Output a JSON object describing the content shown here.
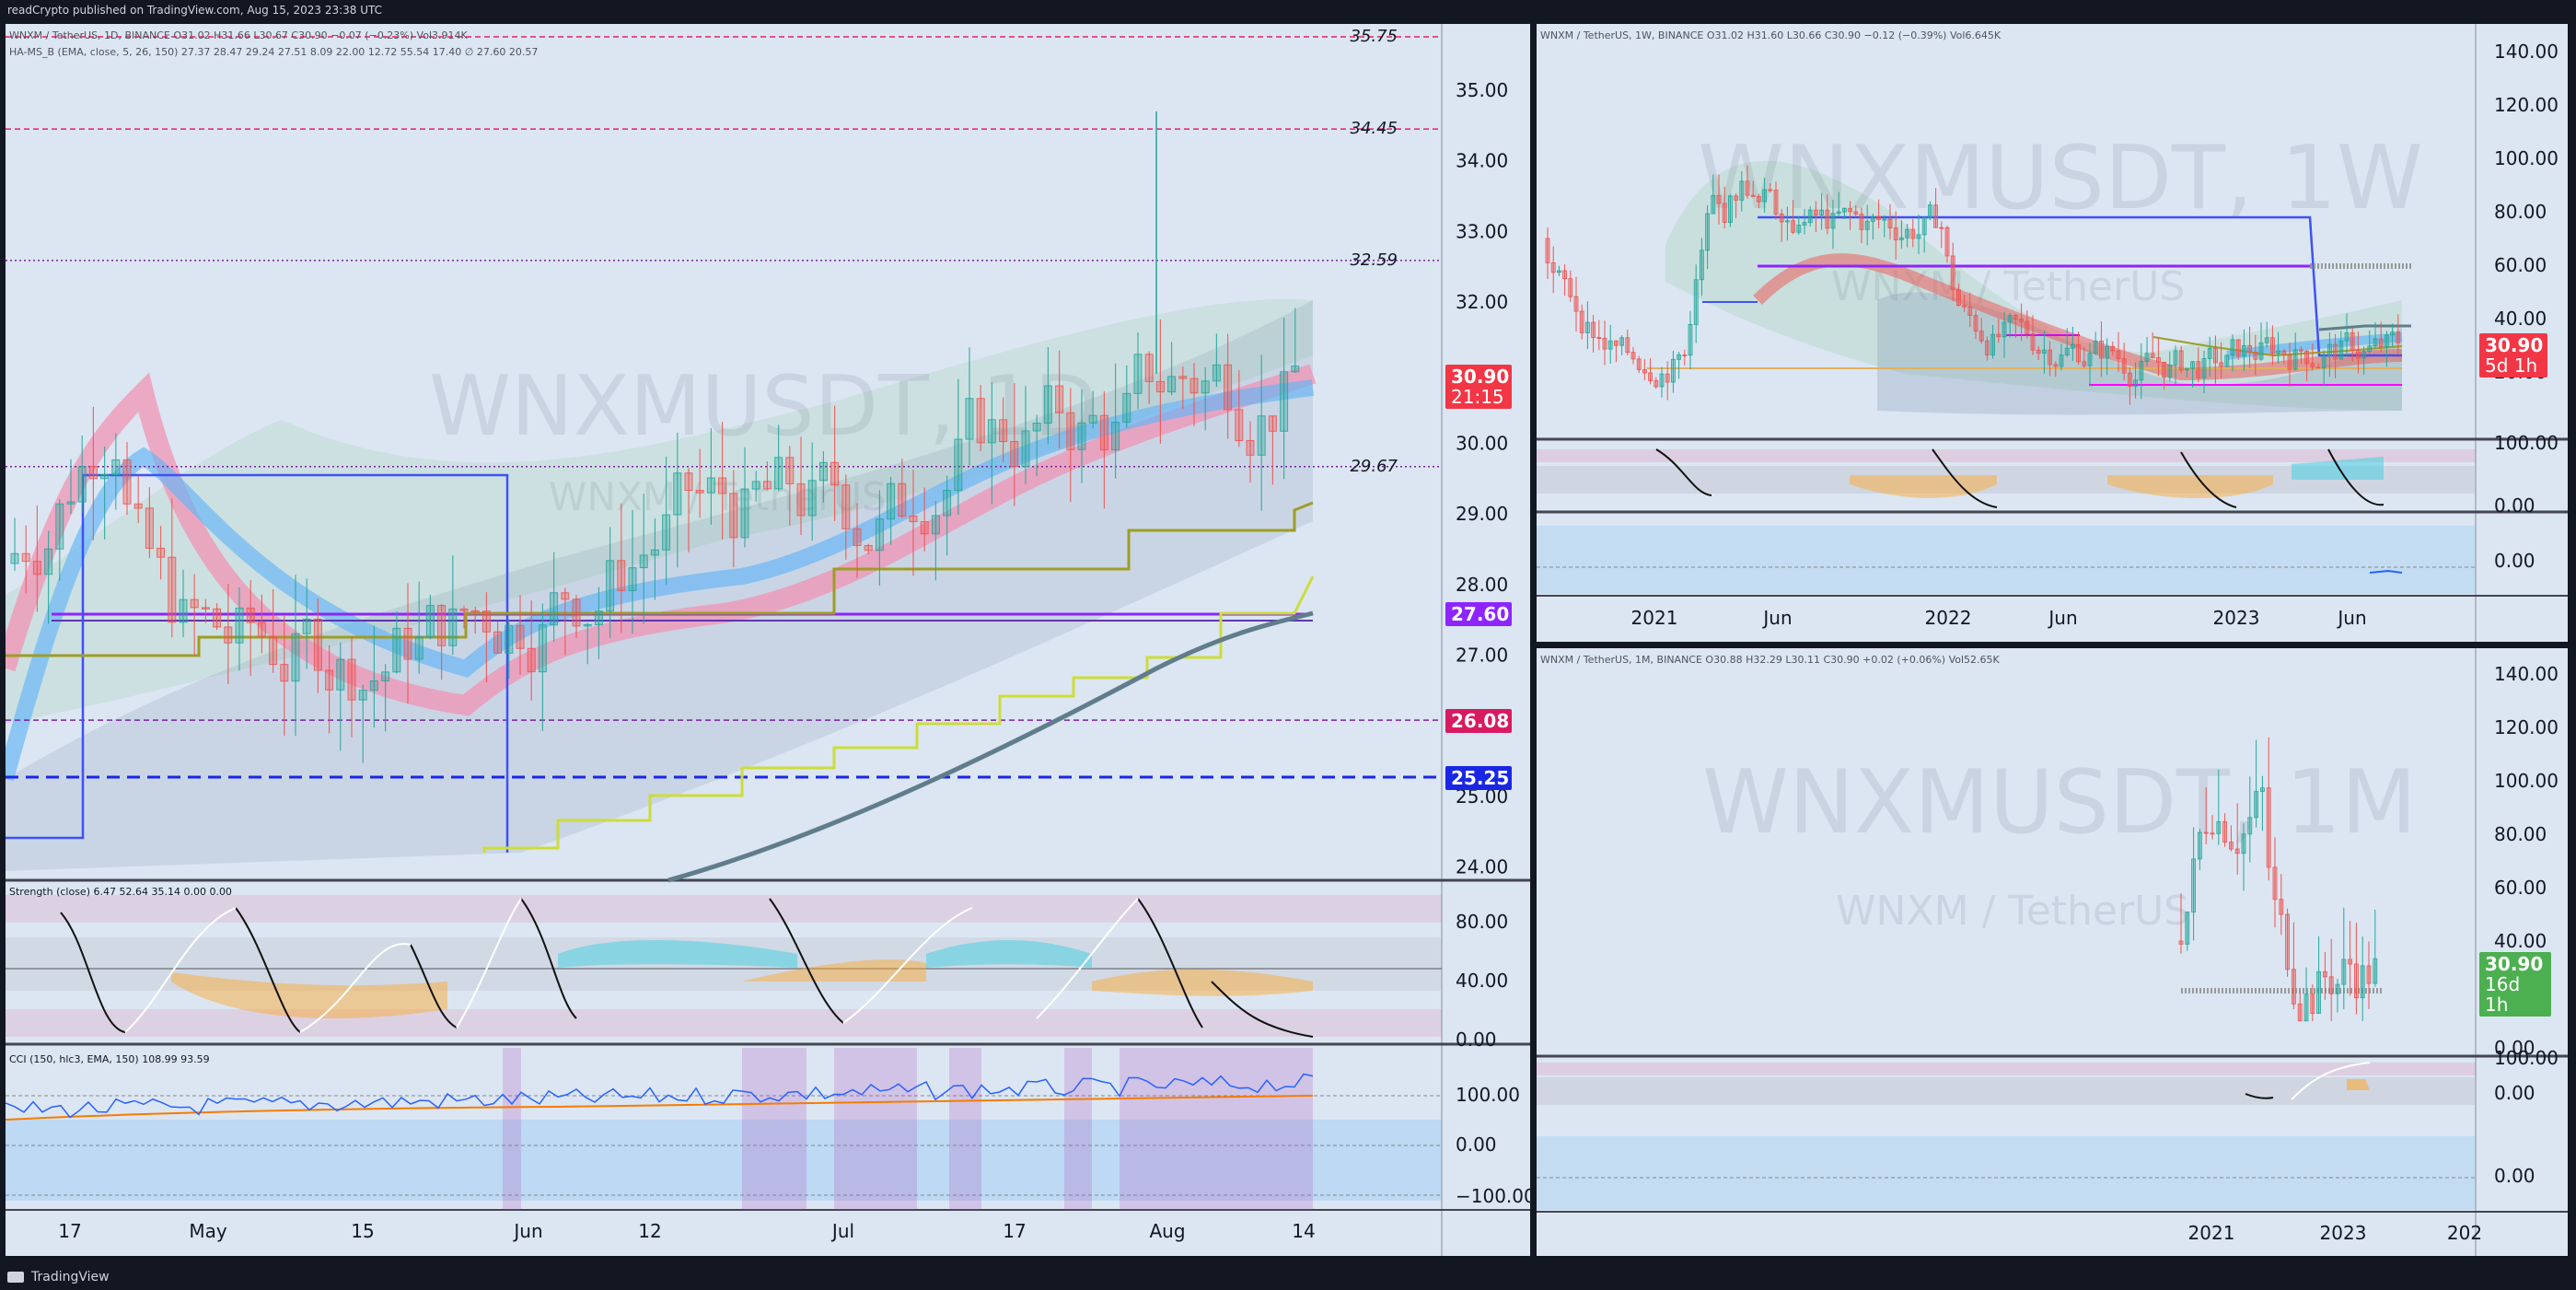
{
  "header": {
    "text": "readCrypto published on TradingView.com, Aug 15, 2023 23:38 UTC"
  },
  "footer": {
    "brand": "TradingView"
  },
  "left": {
    "legend_main": "WNXM / TetherUS, 1D, BINANCE  O31.02 H31.66 L30.67 C30.90 −0.07 (−0.23%)  Vol3.914K",
    "legend_ha": "HA-MS_B (EMA, close, 5, 26, 150)  27.37  28.47  29.24  27.51  8.09  22.00  12.72  55.54  17.40  ∅  27.60  20.57",
    "watermark_big": "WNXMUSDT, 1D",
    "watermark_small": "WNXM / TetherUS",
    "price_ticks": [
      "35.00",
      "34.00",
      "33.00",
      "32.00",
      "31.00",
      "30.00",
      "29.00",
      "28.00",
      "27.00",
      "26.00",
      "25.00",
      "24.00"
    ],
    "levels": [
      {
        "value": "35.75",
        "color": "#e91e63"
      },
      {
        "value": "34.45",
        "color": "#e91e63"
      },
      {
        "value": "32.59",
        "color": "#7b1fa2"
      },
      {
        "value": "29.67",
        "color": "#7b1fa2"
      },
      {
        "value": "26.08",
        "color": "#7b1fa2"
      }
    ],
    "tag_price": {
      "value": "30.90",
      "sub": "21:15",
      "color": "#f23645"
    },
    "tag_2760": {
      "value": "27.60",
      "color": "#8e24ff"
    },
    "tag_2608": {
      "value": "26.08",
      "color": "#d81b60"
    },
    "tag_2525": {
      "value": "25.25",
      "color": "#1a26e6"
    },
    "strength_legend": "Strength (close)  6.47  52.64  35.14  0.00  0.00",
    "strength_ticks": [
      "80.00",
      "40.00",
      "0.00"
    ],
    "cci_legend": "CCI (150, hlc3, EMA, 150)  108.99  93.59",
    "cci_ticks": [
      "100.00",
      "0.00",
      "−100.00"
    ],
    "time_ticks": [
      "17",
      "May",
      "15",
      "Jun",
      "12",
      "Jul",
      "17",
      "Aug",
      "14"
    ]
  },
  "rt": {
    "legend_main": "WNXM / TetherUS, 1W, BINANCE  O31.02 H31.60 L30.66 C30.90 −0.12 (−0.39%)  Vol6.645K",
    "watermark_big": "WNXMUSDT, 1W",
    "watermark_small": "WNXM / TetherUS",
    "price_ticks": [
      "140.00",
      "120.00",
      "100.00",
      "80.00",
      "60.00",
      "40.00",
      "20.00"
    ],
    "tag_price": {
      "value": "30.90",
      "sub": "5d 1h",
      "color": "#f23645"
    },
    "strength_ticks": [
      "100.00",
      "0.00"
    ],
    "cci_ticks": [
      "0.00"
    ],
    "time_ticks": [
      "2021",
      "Jun",
      "2022",
      "Jun",
      "2023",
      "Jun"
    ]
  },
  "rb": {
    "legend_main": "WNXM / TetherUS, 1M, BINANCE  O30.88 H32.29 L30.11 C30.90 +0.02 (+0.06%)  Vol52.65K",
    "watermark_big": "WNXMUSDT, 1M",
    "watermark_small": "WNXM / TetherUS",
    "price_ticks": [
      "140.00",
      "120.00",
      "100.00",
      "80.00",
      "60.00",
      "40.00",
      "20.00",
      "0.00"
    ],
    "tag_price": {
      "value": "30.90",
      "sub": "16d 1h",
      "color": "#4caf50"
    },
    "strength_ticks": [
      "100.00",
      "0.00"
    ],
    "cci_ticks": [
      "0.00"
    ],
    "time_ticks": [
      "2021",
      "2023",
      "202"
    ]
  }
}
